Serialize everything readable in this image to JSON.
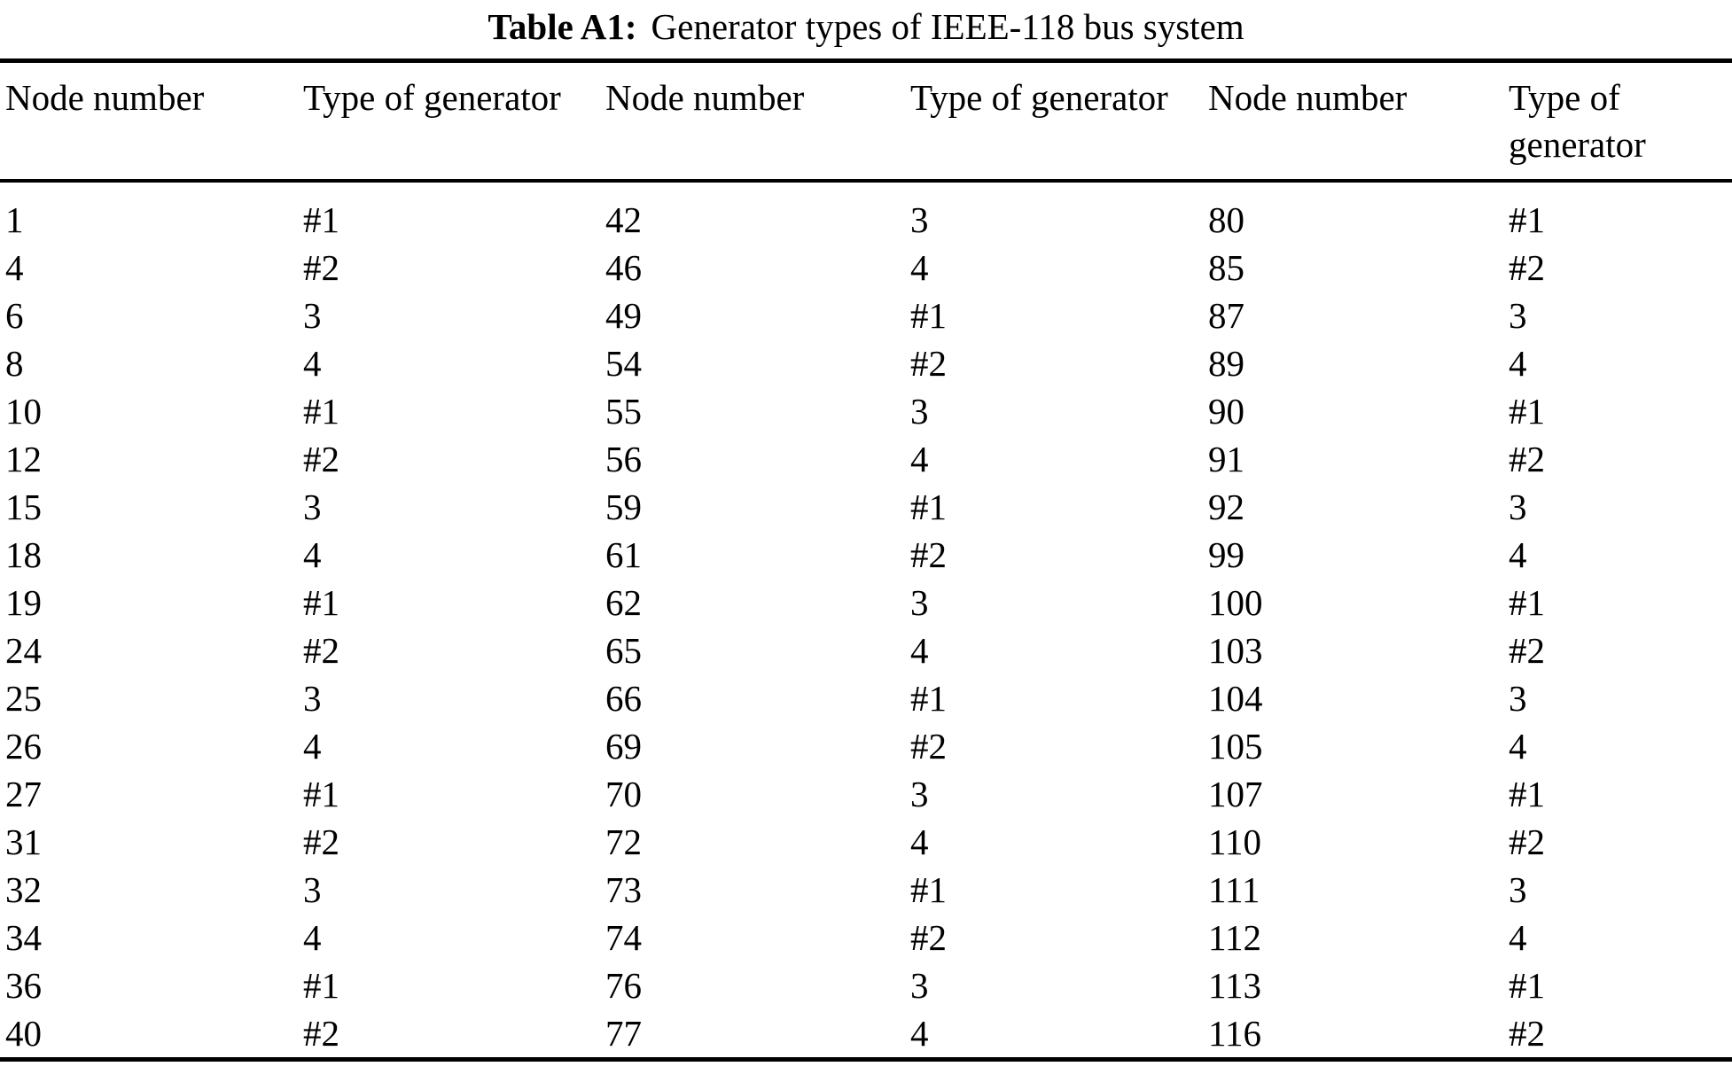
{
  "title": {
    "label": "Table A1:",
    "text": "Generator types of IEEE-118 bus system"
  },
  "table": {
    "col_headers": [
      "Node number",
      "Type of generator",
      "Node number",
      "Type of generator",
      "Node number",
      "Type of generator"
    ],
    "rows": [
      [
        "1",
        "#1",
        "42",
        "3",
        "80",
        "#1"
      ],
      [
        "4",
        "#2",
        "46",
        "4",
        "85",
        "#2"
      ],
      [
        "6",
        "3",
        "49",
        "#1",
        "87",
        "3"
      ],
      [
        "8",
        "4",
        "54",
        "#2",
        "89",
        "4"
      ],
      [
        "10",
        "#1",
        "55",
        "3",
        "90",
        "#1"
      ],
      [
        "12",
        "#2",
        "56",
        "4",
        "91",
        "#2"
      ],
      [
        "15",
        "3",
        "59",
        "#1",
        "92",
        "3"
      ],
      [
        "18",
        "4",
        "61",
        "#2",
        "99",
        "4"
      ],
      [
        "19",
        "#1",
        "62",
        "3",
        "100",
        "#1"
      ],
      [
        "24",
        "#2",
        "65",
        "4",
        "103",
        "#2"
      ],
      [
        "25",
        "3",
        "66",
        "#1",
        "104",
        "3"
      ],
      [
        "26",
        "4",
        "69",
        "#2",
        "105",
        "4"
      ],
      [
        "27",
        "#1",
        "70",
        "3",
        "107",
        "#1"
      ],
      [
        "31",
        "#2",
        "72",
        "4",
        "110",
        "#2"
      ],
      [
        "32",
        "3",
        "73",
        "#1",
        "111",
        "3"
      ],
      [
        "34",
        "4",
        "74",
        "#2",
        "112",
        "4"
      ],
      [
        "36",
        "#1",
        "76",
        "3",
        "113",
        "#1"
      ],
      [
        "40",
        "#2",
        "77",
        "4",
        "116",
        "#2"
      ]
    ]
  },
  "colors": {
    "text": "#000000",
    "background": "#ffffff",
    "rule": "#000000"
  }
}
